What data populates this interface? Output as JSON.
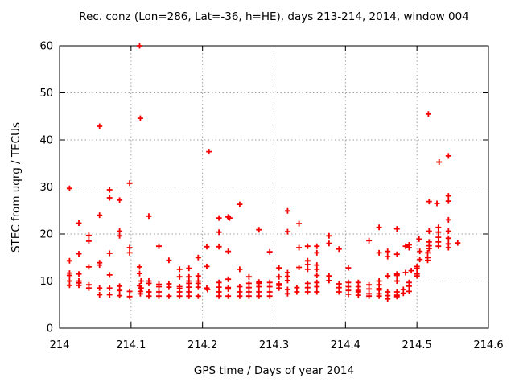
{
  "colors": {
    "background": "#ffffff",
    "border": "#000000",
    "grid": "#a0a0a0",
    "text": "#000000",
    "marker": "#f40000"
  },
  "chart_data": {
    "type": "scatter",
    "title": "Rec. conz (Lon=286, Lat=-36, h=HE), days 213-214, 2014, window 004",
    "xlabel": "GPS time / Days of year 2014",
    "ylabel": "STEC from uqrg / TECUs",
    "xlim": [
      214,
      214.6
    ],
    "ylim": [
      0,
      60
    ],
    "grid": true,
    "legend": "none",
    "marker": "plus",
    "xticks": [
      {
        "v": 214.0,
        "label": "214"
      },
      {
        "v": 214.1,
        "label": "214.1"
      },
      {
        "v": 214.2,
        "label": "214.2"
      },
      {
        "v": 214.3,
        "label": "214.3"
      },
      {
        "v": 214.4,
        "label": "214.4"
      },
      {
        "v": 214.5,
        "label": "214.5"
      },
      {
        "v": 214.6,
        "label": "214.6"
      }
    ],
    "yticks": [
      {
        "v": 0,
        "label": "0"
      },
      {
        "v": 10,
        "label": "10"
      },
      {
        "v": 20,
        "label": "20"
      },
      {
        "v": 30,
        "label": "30"
      },
      {
        "v": 40,
        "label": "40"
      },
      {
        "v": 50,
        "label": "50"
      },
      {
        "v": 60,
        "label": "60"
      }
    ],
    "series": [
      {
        "name": "STEC from uqrg",
        "color": "#f40000",
        "points": [
          [
            214.014,
            29.7
          ],
          [
            214.014,
            14.3
          ],
          [
            214.014,
            11.7
          ],
          [
            214.014,
            11.2
          ],
          [
            214.014,
            10.0
          ],
          [
            214.014,
            9.1
          ],
          [
            214.027,
            22.3
          ],
          [
            214.027,
            15.8
          ],
          [
            214.027,
            11.5
          ],
          [
            214.027,
            10.0
          ],
          [
            214.027,
            9.6
          ],
          [
            214.027,
            9.1
          ],
          [
            214.041,
            19.7
          ],
          [
            214.041,
            18.5
          ],
          [
            214.041,
            13.0
          ],
          [
            214.041,
            9.2
          ],
          [
            214.041,
            8.5
          ],
          [
            214.056,
            42.9
          ],
          [
            214.056,
            24.0
          ],
          [
            214.056,
            13.9
          ],
          [
            214.056,
            13.4
          ],
          [
            214.056,
            8.5
          ],
          [
            214.056,
            7.1
          ],
          [
            214.07,
            29.4
          ],
          [
            214.07,
            27.7
          ],
          [
            214.07,
            15.9
          ],
          [
            214.07,
            11.3
          ],
          [
            214.07,
            8.5
          ],
          [
            214.07,
            7.1
          ],
          [
            214.084,
            27.2
          ],
          [
            214.084,
            20.6
          ],
          [
            214.084,
            19.6
          ],
          [
            214.084,
            8.9
          ],
          [
            214.084,
            8.0
          ],
          [
            214.084,
            6.9
          ],
          [
            214.098,
            30.8
          ],
          [
            214.098,
            17.1
          ],
          [
            214.098,
            16.0
          ],
          [
            214.098,
            7.8
          ],
          [
            214.098,
            6.7
          ],
          [
            214.112,
            60.0
          ],
          [
            214.113,
            44.6
          ],
          [
            214.112,
            13.0
          ],
          [
            214.112,
            11.6
          ],
          [
            214.114,
            10.0
          ],
          [
            214.112,
            9.0
          ],
          [
            214.114,
            8.5
          ],
          [
            214.113,
            7.8
          ],
          [
            214.113,
            7.3
          ],
          [
            214.125,
            23.8
          ],
          [
            214.125,
            10.0
          ],
          [
            214.125,
            9.5
          ],
          [
            214.125,
            7.7
          ],
          [
            214.125,
            6.8
          ],
          [
            214.139,
            17.4
          ],
          [
            214.139,
            9.3
          ],
          [
            214.139,
            8.8
          ],
          [
            214.139,
            7.7
          ],
          [
            214.139,
            6.8
          ],
          [
            214.153,
            14.4
          ],
          [
            214.153,
            9.4
          ],
          [
            214.153,
            8.7
          ],
          [
            214.153,
            6.8
          ],
          [
            214.168,
            12.5
          ],
          [
            214.168,
            10.9
          ],
          [
            214.168,
            8.8
          ],
          [
            214.168,
            8.4
          ],
          [
            214.168,
            7.7
          ],
          [
            214.168,
            6.8
          ],
          [
            214.181,
            12.7
          ],
          [
            214.181,
            10.9
          ],
          [
            214.181,
            10.0
          ],
          [
            214.181,
            9.5
          ],
          [
            214.181,
            8.7
          ],
          [
            214.181,
            7.7
          ],
          [
            214.181,
            6.8
          ],
          [
            214.194,
            15.0
          ],
          [
            214.194,
            11.1
          ],
          [
            214.194,
            10.0
          ],
          [
            214.194,
            9.5
          ],
          [
            214.194,
            8.7
          ],
          [
            214.194,
            6.8
          ],
          [
            214.206,
            17.3
          ],
          [
            214.206,
            13.1
          ],
          [
            214.206,
            8.5
          ],
          [
            214.207,
            8.2
          ],
          [
            214.209,
            37.5
          ],
          [
            214.223,
            23.4
          ],
          [
            214.223,
            20.4
          ],
          [
            214.223,
            17.3
          ],
          [
            214.223,
            9.7
          ],
          [
            214.223,
            8.7
          ],
          [
            214.223,
            7.7
          ],
          [
            214.223,
            6.8
          ],
          [
            214.236,
            23.6
          ],
          [
            214.238,
            23.4
          ],
          [
            214.236,
            16.3
          ],
          [
            214.236,
            10.4
          ],
          [
            214.236,
            8.6
          ],
          [
            214.236,
            8.3
          ],
          [
            214.236,
            6.8
          ],
          [
            214.252,
            26.3
          ],
          [
            214.252,
            12.5
          ],
          [
            214.252,
            8.8
          ],
          [
            214.252,
            7.7
          ],
          [
            214.252,
            6.8
          ],
          [
            214.265,
            10.9
          ],
          [
            214.265,
            9.5
          ],
          [
            214.265,
            8.6
          ],
          [
            214.265,
            7.7
          ],
          [
            214.265,
            6.8
          ],
          [
            214.279,
            20.9
          ],
          [
            214.279,
            9.8
          ],
          [
            214.279,
            9.5
          ],
          [
            214.279,
            8.8
          ],
          [
            214.279,
            7.7
          ],
          [
            214.279,
            6.8
          ],
          [
            214.294,
            16.2
          ],
          [
            214.294,
            9.7
          ],
          [
            214.294,
            8.8
          ],
          [
            214.294,
            7.7
          ],
          [
            214.294,
            6.8
          ],
          [
            214.307,
            12.8
          ],
          [
            214.307,
            10.9
          ],
          [
            214.307,
            9.4
          ],
          [
            214.307,
            9.1
          ],
          [
            214.307,
            8.5
          ],
          [
            214.319,
            24.9
          ],
          [
            214.319,
            20.5
          ],
          [
            214.319,
            11.8
          ],
          [
            214.319,
            11.0
          ],
          [
            214.319,
            10.1
          ],
          [
            214.319,
            8.2
          ],
          [
            214.319,
            7.3
          ],
          [
            214.332,
            8.6
          ],
          [
            214.332,
            7.7
          ],
          [
            214.335,
            22.2
          ],
          [
            214.335,
            17.1
          ],
          [
            214.335,
            12.9
          ],
          [
            214.347,
            17.4
          ],
          [
            214.347,
            14.3
          ],
          [
            214.347,
            13.5
          ],
          [
            214.347,
            12.5
          ],
          [
            214.347,
            9.5
          ],
          [
            214.347,
            8.6
          ],
          [
            214.347,
            7.7
          ],
          [
            214.36,
            17.4
          ],
          [
            214.36,
            16.0
          ],
          [
            214.36,
            13.4
          ],
          [
            214.36,
            12.5
          ],
          [
            214.36,
            11.2
          ],
          [
            214.36,
            9.7
          ],
          [
            214.36,
            8.8
          ],
          [
            214.36,
            7.7
          ],
          [
            214.377,
            19.6
          ],
          [
            214.377,
            18.0
          ],
          [
            214.377,
            11.1
          ],
          [
            214.377,
            10.1
          ],
          [
            214.391,
            16.8
          ],
          [
            214.391,
            9.4
          ],
          [
            214.391,
            8.6
          ],
          [
            214.391,
            7.7
          ],
          [
            214.404,
            12.8
          ],
          [
            214.404,
            9.7
          ],
          [
            214.404,
            8.8
          ],
          [
            214.404,
            8.0
          ],
          [
            214.404,
            7.2
          ],
          [
            214.418,
            9.7
          ],
          [
            214.418,
            8.8
          ],
          [
            214.418,
            8.0
          ],
          [
            214.418,
            7.7
          ],
          [
            214.418,
            7.0
          ],
          [
            214.433,
            18.6
          ],
          [
            214.433,
            9.2
          ],
          [
            214.433,
            8.3
          ],
          [
            214.433,
            7.3
          ],
          [
            214.433,
            6.8
          ],
          [
            214.447,
            21.4
          ],
          [
            214.447,
            16.0
          ],
          [
            214.447,
            10.0
          ],
          [
            214.447,
            9.2
          ],
          [
            214.447,
            8.4
          ],
          [
            214.447,
            8.1
          ],
          [
            214.447,
            7.3
          ],
          [
            214.447,
            6.8
          ],
          [
            214.459,
            16.3
          ],
          [
            214.459,
            15.2
          ],
          [
            214.459,
            11.1
          ],
          [
            214.459,
            7.7
          ],
          [
            214.459,
            6.9
          ],
          [
            214.459,
            6.2
          ],
          [
            214.472,
            21.1
          ],
          [
            214.472,
            15.7
          ],
          [
            214.472,
            11.5
          ],
          [
            214.472,
            11.2
          ],
          [
            214.472,
            10.0
          ],
          [
            214.472,
            7.7
          ],
          [
            214.472,
            7.0
          ],
          [
            214.472,
            6.7
          ],
          [
            214.481,
            8.2
          ],
          [
            214.481,
            7.4
          ],
          [
            214.484,
            17.4
          ],
          [
            214.484,
            11.8
          ],
          [
            214.489,
            17.7
          ],
          [
            214.489,
            17.1
          ],
          [
            214.489,
            9.7
          ],
          [
            214.489,
            8.9
          ],
          [
            214.489,
            7.8
          ],
          [
            214.492,
            12.2
          ],
          [
            214.5,
            13.1
          ],
          [
            214.5,
            12.7
          ],
          [
            214.5,
            11.5
          ],
          [
            214.5,
            11.1
          ],
          [
            214.503,
            18.9
          ],
          [
            214.504,
            16.3
          ],
          [
            214.504,
            14.6
          ],
          [
            214.515,
            16.0
          ],
          [
            214.515,
            15.0
          ],
          [
            214.515,
            14.4
          ],
          [
            214.516,
            45.5
          ],
          [
            214.517,
            26.9
          ],
          [
            214.517,
            20.6
          ],
          [
            214.517,
            18.3
          ],
          [
            214.517,
            17.5
          ],
          [
            214.517,
            16.9
          ],
          [
            214.528,
            26.5
          ],
          [
            214.53,
            21.4
          ],
          [
            214.53,
            20.4
          ],
          [
            214.53,
            19.3
          ],
          [
            214.53,
            18.3
          ],
          [
            214.53,
            17.4
          ],
          [
            214.531,
            35.3
          ],
          [
            214.544,
            36.6
          ],
          [
            214.544,
            28.1
          ],
          [
            214.544,
            27.0
          ],
          [
            214.544,
            23.0
          ],
          [
            214.544,
            20.6
          ],
          [
            214.544,
            19.1
          ],
          [
            214.544,
            17.9
          ],
          [
            214.544,
            17.1
          ],
          [
            214.557,
            18.1
          ]
        ]
      }
    ]
  }
}
